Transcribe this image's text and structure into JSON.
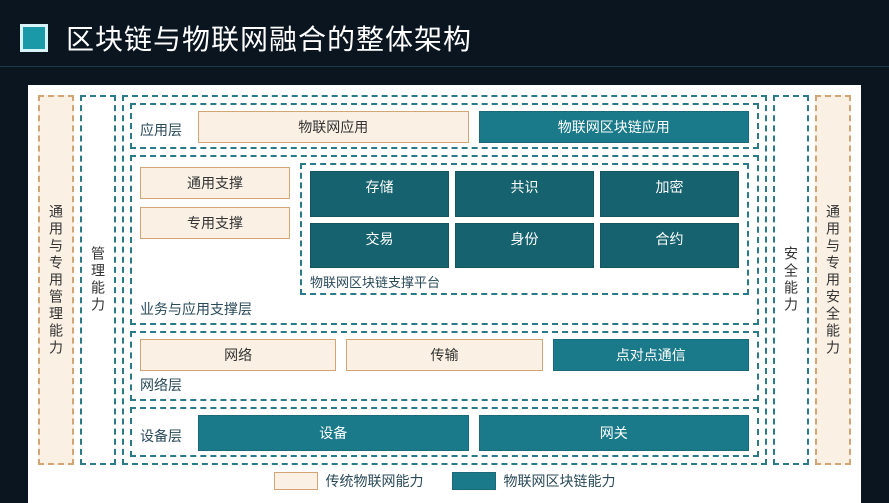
{
  "colors": {
    "page_bg": "#0a1520",
    "panel_bg": "#ffffff",
    "teal_border": "#2a7a8a",
    "teal_fill": "#1a7a8a",
    "teal_dark_fill": "#16626e",
    "beige_border": "#d4a574",
    "beige_fill": "#faf0e4",
    "text_dark": "#2a4a5a",
    "text_white": "#ffffff"
  },
  "header": {
    "title": "区块链与物联网融合的整体架构",
    "icon_bg": "#1a9aa8",
    "icon_border": "#d8f4fa",
    "title_fontsize": 28
  },
  "left_side": {
    "col1": "通用与专用管理能力",
    "col2": "管理能力"
  },
  "right_side": {
    "col1": "安全能力",
    "col2": "通用与专用安全能力"
  },
  "layers": {
    "app": {
      "label": "应用层",
      "box1": "物联网应用",
      "box2": "物联网区块链应用"
    },
    "support": {
      "label": "业务与应用支撑层",
      "left1": "通用支撑",
      "left2": "专用支撑",
      "platform_label": "物联网区块链支撑平台",
      "grid": [
        "存储",
        "共识",
        "加密",
        "交易",
        "身份",
        "合约"
      ]
    },
    "network": {
      "label": "网络层",
      "box1": "网络",
      "box2": "传输",
      "box3": "点对点通信"
    },
    "device": {
      "label": "设备层",
      "box1": "设备",
      "box2": "网关"
    }
  },
  "legend": {
    "item1": "传统物联网能力",
    "item2": "物联网区块链能力"
  }
}
